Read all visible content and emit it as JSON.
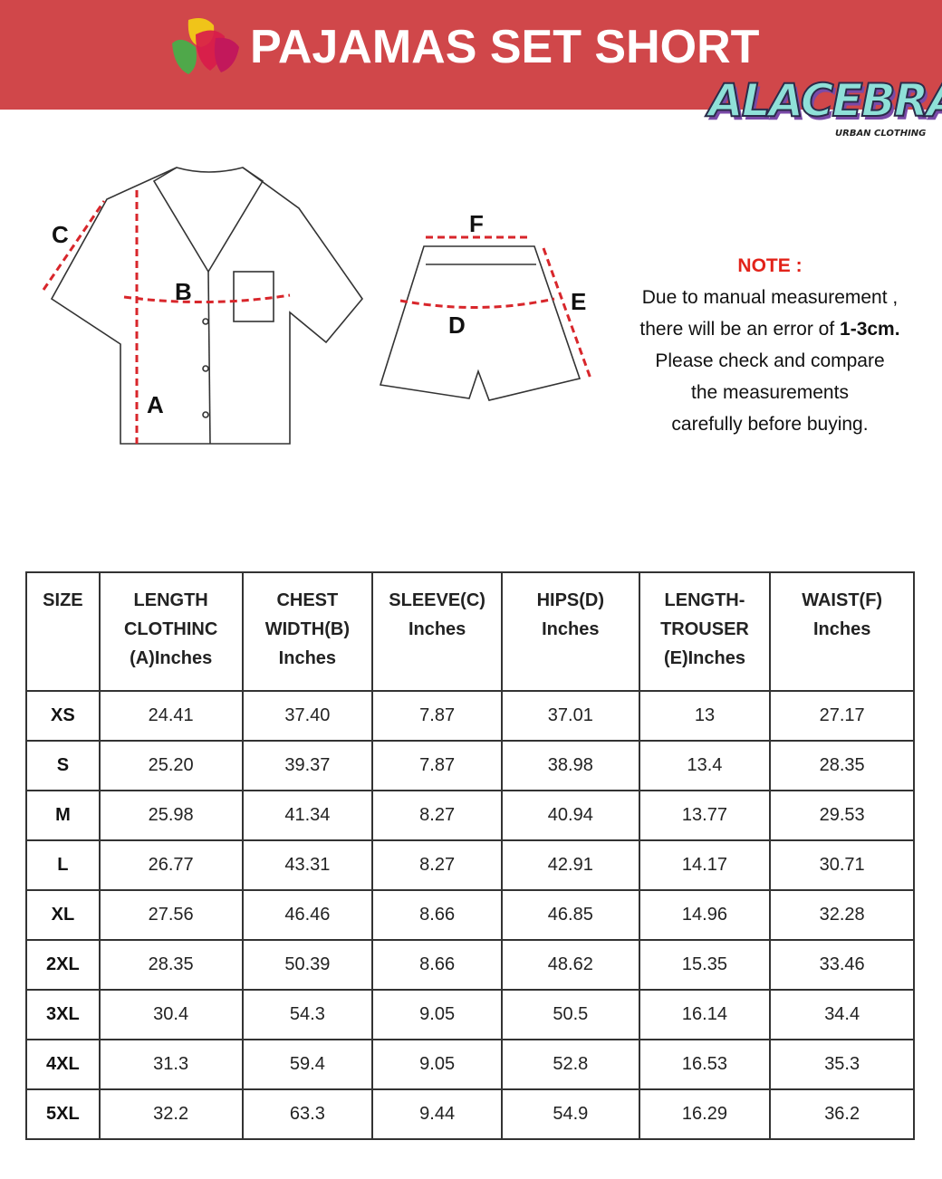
{
  "header": {
    "title": "PAJAMAS SET SHORT",
    "brand": "ALACEBRA",
    "brand_sub": "URBAN CLOTHING",
    "background": "#d0474a"
  },
  "diagram": {
    "labels": {
      "a": "A",
      "b": "B",
      "c": "C",
      "d": "D",
      "e": "E",
      "f": "F"
    },
    "measure_color": "#d8262b"
  },
  "note": {
    "heading": "NOTE :",
    "line1": "Due to manual measurement ,",
    "line2_pre": "there will be an error of ",
    "line2_bold": "1-3cm.",
    "line3": "Please check and compare",
    "line4": "the measurements",
    "line5": "carefully before buying."
  },
  "table": {
    "headers": [
      "SIZE",
      "LENGTH\nCLOTHINC\n(A)Inches",
      "CHEST\nWIDTH(B)\nInches",
      "SLEEVE(C)\nInches",
      "HIPS(D)\nInches",
      "LENGTH-\nTROUSER\n(E)Inches",
      "WAIST(F)\nInches"
    ],
    "rows": [
      [
        "XS",
        "24.41",
        "37.40",
        "7.87",
        "37.01",
        "13",
        "27.17"
      ],
      [
        "S",
        "25.20",
        "39.37",
        "7.87",
        "38.98",
        "13.4",
        "28.35"
      ],
      [
        "M",
        "25.98",
        "41.34",
        "8.27",
        "40.94",
        "13.77",
        "29.53"
      ],
      [
        "L",
        "26.77",
        "43.31",
        "8.27",
        "42.91",
        "14.17",
        "30.71"
      ],
      [
        "XL",
        "27.56",
        "46.46",
        "8.66",
        "46.85",
        "14.96",
        "32.28"
      ],
      [
        "2XL",
        "28.35",
        "50.39",
        "8.66",
        "48.62",
        "15.35",
        "33.46"
      ],
      [
        "3XL",
        "30.4",
        "54.3",
        "9.05",
        "50.5",
        "16.14",
        "34.4"
      ],
      [
        "4XL",
        "31.3",
        "59.4",
        "9.05",
        "52.8",
        "16.53",
        "35.3"
      ],
      [
        "5XL",
        "32.2",
        "63.3",
        "9.44",
        "54.9",
        "16.29",
        "36.2"
      ]
    ]
  }
}
